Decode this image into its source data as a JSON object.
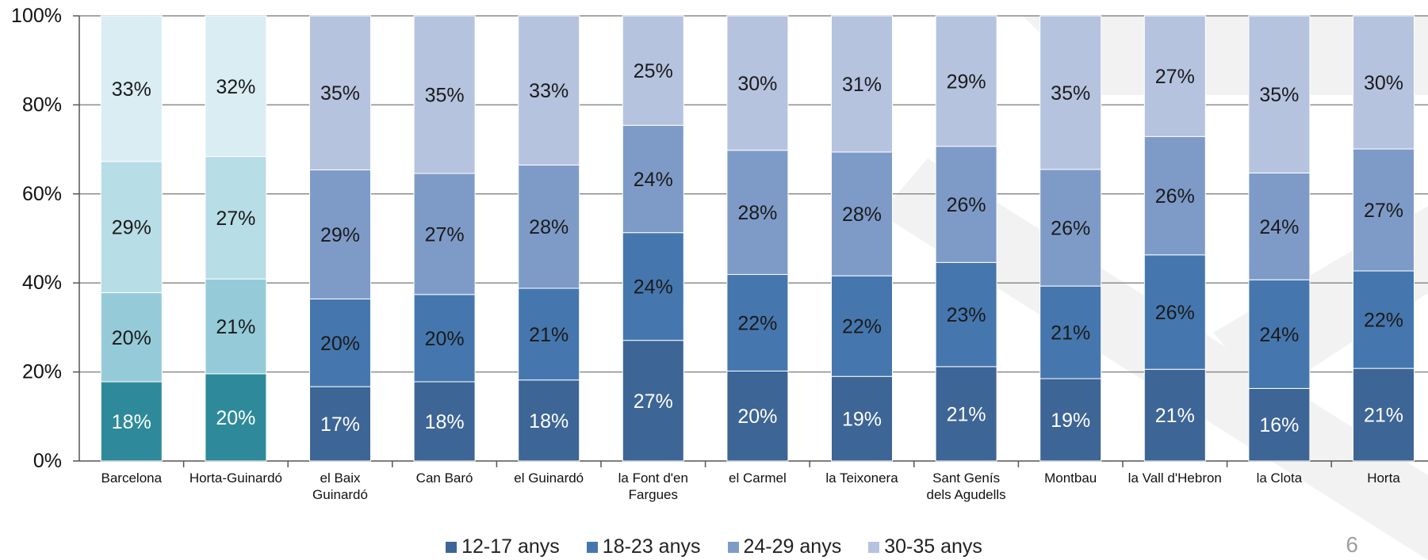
{
  "chart_data": {
    "type": "bar",
    "stacked": true,
    "percent_stacked": true,
    "categories": [
      "Barcelona",
      "Horta-Guinardó",
      "el Baix Guinardó",
      "Can Baró",
      "el Guinardó",
      "la Font d'en Fargues",
      "el Carmel",
      "la Teixonera",
      "Sant Genís dels Agudells",
      "Montbau",
      "la Vall d'Hebron",
      "la Clota",
      "Horta"
    ],
    "category_label_lines": [
      [
        "Barcelona"
      ],
      [
        "Horta-Guinardó"
      ],
      [
        "el Baix",
        "Guinardó"
      ],
      [
        "Can Baró"
      ],
      [
        "el Guinardó"
      ],
      [
        "la Font d'en",
        "Fargues"
      ],
      [
        "el Carmel"
      ],
      [
        "la Teixonera"
      ],
      [
        "Sant Genís",
        "dels Agudells"
      ],
      [
        "Montbau"
      ],
      [
        "la Vall d'Hebron"
      ],
      [
        "la Clota"
      ],
      [
        "Horta"
      ]
    ],
    "series": [
      {
        "name": "12-17 anys",
        "values": [
          18,
          20,
          17,
          18,
          18,
          27,
          20,
          19,
          21,
          19,
          21,
          16,
          21
        ]
      },
      {
        "name": "18-23 anys",
        "values": [
          20,
          21,
          20,
          20,
          21,
          24,
          22,
          22,
          23,
          21,
          26,
          24,
          22
        ]
      },
      {
        "name": "24-29 anys",
        "values": [
          29,
          27,
          29,
          27,
          28,
          24,
          28,
          28,
          26,
          26,
          26,
          24,
          27
        ]
      },
      {
        "name": "30-35 anys",
        "values": [
          33,
          32,
          35,
          35,
          33,
          25,
          30,
          31,
          29,
          35,
          27,
          35,
          30
        ]
      }
    ],
    "segment_fractions": [
      [
        0.178,
        0.2,
        0.295,
        0.327
      ],
      [
        0.196,
        0.213,
        0.275,
        0.316
      ],
      [
        0.167,
        0.197,
        0.29,
        0.346
      ],
      [
        0.178,
        0.196,
        0.272,
        0.354
      ],
      [
        0.182,
        0.206,
        0.277,
        0.335
      ],
      [
        0.271,
        0.242,
        0.241,
        0.246
      ],
      [
        0.202,
        0.217,
        0.279,
        0.302
      ],
      [
        0.19,
        0.226,
        0.278,
        0.306
      ],
      [
        0.212,
        0.234,
        0.261,
        0.293
      ],
      [
        0.185,
        0.208,
        0.262,
        0.345
      ],
      [
        0.206,
        0.257,
        0.266,
        0.271
      ],
      [
        0.163,
        0.244,
        0.24,
        0.353
      ],
      [
        0.208,
        0.219,
        0.274,
        0.299
      ]
    ],
    "ylim": [
      0,
      100
    ],
    "yticks": [
      "0%",
      "20%",
      "40%",
      "60%",
      "80%",
      "100%"
    ],
    "grid": true,
    "legend_position": "bottom",
    "xlabel": "",
    "ylabel": "",
    "title": ""
  },
  "colors": {
    "series": [
      "#3d6596",
      "#4577ae",
      "#7e9bc8",
      "#b5c3df"
    ],
    "highlight_series": [
      "#2e8a9b",
      "#95cbd9",
      "#b7dde6",
      "#d9edf3"
    ],
    "highlight_categories": [
      0,
      1
    ],
    "label_dark": "#1a1a1a",
    "label_light": "#ffffff",
    "grid": "#8c8c8c",
    "watermark": "#f2f2f2"
  },
  "legend": {
    "items": [
      "12-17 anys",
      "18-23 anys",
      "24-29 anys",
      "30-35 anys"
    ]
  },
  "page_number": "6"
}
